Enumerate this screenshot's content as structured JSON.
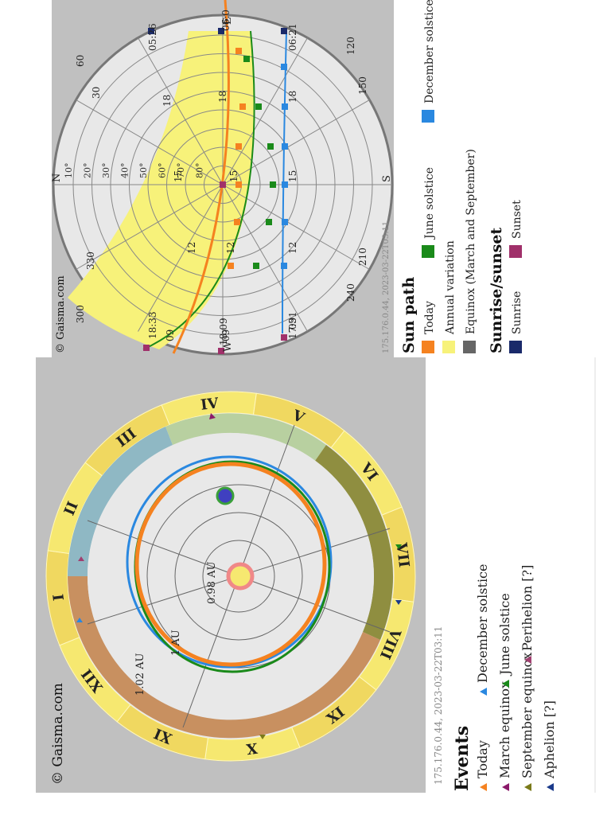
{
  "orbit_panel": {
    "copyright": "© Gaisma.com",
    "footer": "175.176.0.44, 2023-03-22T03:11",
    "months": [
      "I",
      "II",
      "III",
      "IV",
      "V",
      "VI",
      "VII",
      "VIII",
      "IX",
      "X",
      "XI",
      "XII"
    ],
    "distance_labels": [
      "0.98 AU",
      "1 AU",
      "1.02 AU"
    ],
    "colors": {
      "winter": "#8fb8c4",
      "spring": "#b8d0a0",
      "summer": "#8f8e40",
      "autumn": "#c89060",
      "ring": "#f6e870",
      "today": "#f58220",
      "june": "#1a8a1a",
      "december": "#2a88e0",
      "sun": "#f6e870",
      "sun_ring": "#f08888",
      "earth": "#4040c0"
    }
  },
  "events": {
    "title": "Events",
    "items": [
      {
        "label": "Today",
        "color": "#f58220"
      },
      {
        "label": "December solstice",
        "color": "#2a88e0"
      },
      {
        "label": "March equinox",
        "color": "#8b1a6a"
      },
      {
        "label": "June solstice",
        "color": "#1a8a1a"
      },
      {
        "label": "September equinox",
        "color": "#7a7a1a"
      },
      {
        "label": "Perihelion [?]",
        "color": "#a04070"
      },
      {
        "label": "Aphelion [?]",
        "color": "#1a3a8a"
      }
    ]
  },
  "sunpath_panel": {
    "copyright": "© Gaisma.com",
    "footer": "175.176.0.44, 2023-03-22T03:11",
    "compass": {
      "N": "N",
      "S": "S",
      "E": "E",
      "W": "W"
    },
    "azimuth_labels": [
      "30",
      "60",
      "120",
      "150",
      "210",
      "240",
      "300",
      "330"
    ],
    "altitude_labels": [
      "10°",
      "20°",
      "30°",
      "40°",
      "50°",
      "60°",
      "70°",
      "80°"
    ],
    "hour_labels": [
      "09",
      "12",
      "15",
      "18"
    ],
    "times": {
      "summer_rise": "05:26",
      "summer_set": "18:33",
      "today_rise": "06:0",
      "today_set": "18:09",
      "winter_rise": "06:21",
      "winter_set": "17:31"
    }
  },
  "sunpath_legend": {
    "title": "Sun path",
    "items": [
      {
        "label": "Today",
        "color": "#f58220"
      },
      {
        "label": "June solstice",
        "color": "#1a8a1a"
      },
      {
        "label": "December solstice",
        "color": "#2a88e0"
      },
      {
        "label": "Annual variation",
        "color": "#f7f27a"
      },
      {
        "label": "Equinox (March and September)",
        "color": "#666666"
      }
    ]
  },
  "sunrise_legend": {
    "title": "Sunrise/sunset",
    "items": [
      {
        "label": "Sunrise",
        "color": "#1a2a6a"
      },
      {
        "label": "Sunset",
        "color": "#a0306a"
      }
    ]
  }
}
